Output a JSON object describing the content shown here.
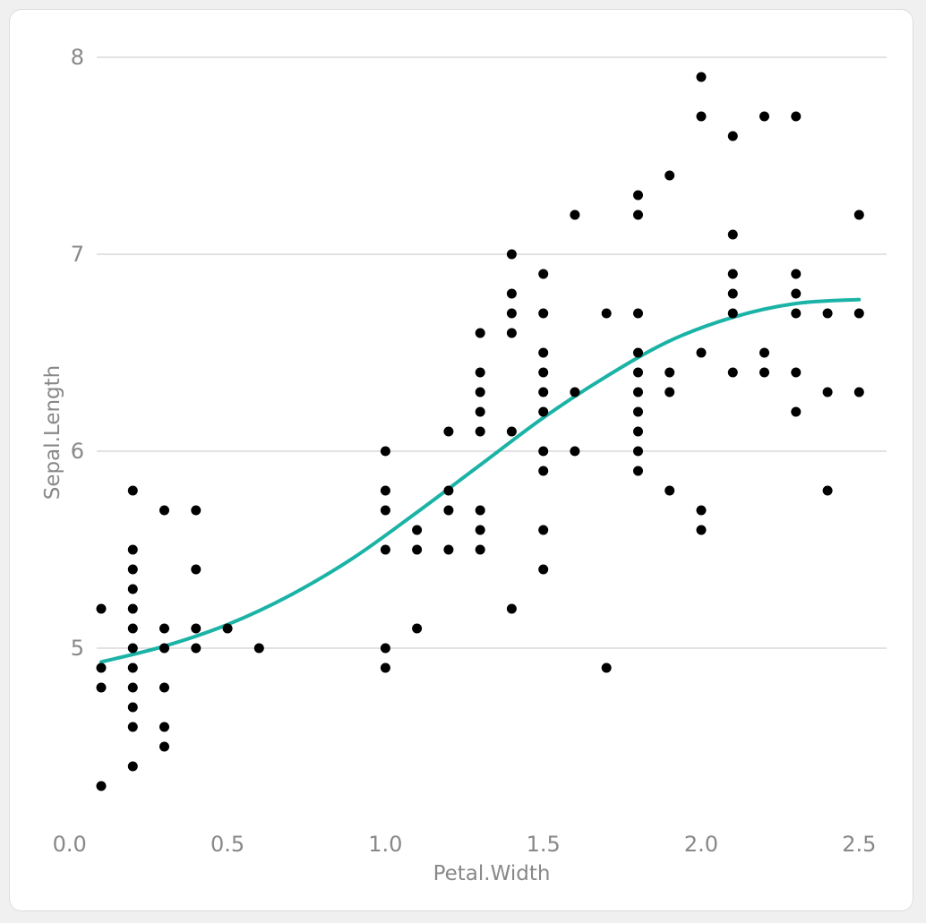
{
  "chart_data": {
    "type": "scatter",
    "xlabel": "Petal.Width",
    "ylabel": "Sepal.Length",
    "xlim": [
      0,
      2.6
    ],
    "ylim": [
      4.1,
      8.0
    ],
    "x_ticks": [
      "0.0",
      "0.5",
      "1.0",
      "1.5",
      "2.0",
      "2.5"
    ],
    "y_ticks": [
      "5",
      "6",
      "7",
      "8"
    ],
    "grid": "horizontal",
    "legend": "none",
    "colors": {
      "points": "#000000",
      "trend_line": "#1ab3a6",
      "gridline": "#d0d0d0"
    },
    "series": [
      {
        "type": "scatter",
        "points": [
          [
            0.1,
            5.2
          ],
          [
            0.1,
            4.9
          ],
          [
            0.1,
            4.8
          ],
          [
            0.1,
            4.3
          ],
          [
            0.2,
            5.8
          ],
          [
            0.2,
            5.5
          ],
          [
            0.2,
            5.4
          ],
          [
            0.2,
            5.3
          ],
          [
            0.2,
            5.2
          ],
          [
            0.2,
            5.1
          ],
          [
            0.2,
            5.0
          ],
          [
            0.2,
            4.9
          ],
          [
            0.2,
            4.8
          ],
          [
            0.2,
            4.7
          ],
          [
            0.2,
            4.6
          ],
          [
            0.2,
            4.4
          ],
          [
            0.3,
            5.7
          ],
          [
            0.3,
            5.1
          ],
          [
            0.3,
            5.0
          ],
          [
            0.3,
            4.8
          ],
          [
            0.3,
            4.6
          ],
          [
            0.3,
            4.5
          ],
          [
            0.4,
            5.7
          ],
          [
            0.4,
            5.4
          ],
          [
            0.4,
            5.1
          ],
          [
            0.4,
            5.0
          ],
          [
            0.5,
            5.1
          ],
          [
            0.6,
            5.0
          ],
          [
            1.0,
            6.0
          ],
          [
            1.0,
            5.8
          ],
          [
            1.0,
            5.7
          ],
          [
            1.0,
            5.5
          ],
          [
            1.0,
            5.0
          ],
          [
            1.0,
            4.9
          ],
          [
            1.1,
            5.6
          ],
          [
            1.1,
            5.5
          ],
          [
            1.1,
            5.1
          ],
          [
            1.2,
            6.1
          ],
          [
            1.2,
            5.8
          ],
          [
            1.2,
            5.7
          ],
          [
            1.2,
            5.5
          ],
          [
            1.3,
            6.6
          ],
          [
            1.3,
            6.4
          ],
          [
            1.3,
            6.3
          ],
          [
            1.3,
            6.2
          ],
          [
            1.3,
            6.1
          ],
          [
            1.3,
            5.7
          ],
          [
            1.3,
            5.6
          ],
          [
            1.3,
            5.5
          ],
          [
            1.4,
            7.0
          ],
          [
            1.4,
            6.8
          ],
          [
            1.4,
            6.7
          ],
          [
            1.4,
            6.6
          ],
          [
            1.4,
            6.1
          ],
          [
            1.4,
            5.2
          ],
          [
            1.5,
            6.9
          ],
          [
            1.5,
            6.7
          ],
          [
            1.5,
            6.5
          ],
          [
            1.5,
            6.4
          ],
          [
            1.5,
            6.3
          ],
          [
            1.5,
            6.2
          ],
          [
            1.5,
            6.0
          ],
          [
            1.5,
            5.9
          ],
          [
            1.5,
            5.6
          ],
          [
            1.5,
            5.4
          ],
          [
            1.6,
            7.2
          ],
          [
            1.6,
            6.3
          ],
          [
            1.6,
            6.0
          ],
          [
            1.7,
            6.7
          ],
          [
            1.7,
            4.9
          ],
          [
            1.8,
            7.3
          ],
          [
            1.8,
            7.2
          ],
          [
            1.8,
            6.7
          ],
          [
            1.8,
            6.5
          ],
          [
            1.8,
            6.4
          ],
          [
            1.8,
            6.3
          ],
          [
            1.8,
            6.2
          ],
          [
            1.8,
            6.1
          ],
          [
            1.8,
            6.0
          ],
          [
            1.8,
            5.9
          ],
          [
            1.9,
            7.4
          ],
          [
            1.9,
            6.4
          ],
          [
            1.9,
            6.3
          ],
          [
            1.9,
            5.8
          ],
          [
            2.0,
            7.9
          ],
          [
            2.0,
            7.7
          ],
          [
            2.0,
            6.5
          ],
          [
            2.0,
            5.7
          ],
          [
            2.0,
            5.6
          ],
          [
            2.1,
            7.6
          ],
          [
            2.1,
            7.1
          ],
          [
            2.1,
            6.9
          ],
          [
            2.1,
            6.8
          ],
          [
            2.1,
            6.7
          ],
          [
            2.1,
            6.4
          ],
          [
            2.2,
            7.7
          ],
          [
            2.2,
            6.5
          ],
          [
            2.2,
            6.4
          ],
          [
            2.3,
            7.7
          ],
          [
            2.3,
            6.9
          ],
          [
            2.3,
            6.8
          ],
          [
            2.3,
            6.7
          ],
          [
            2.3,
            6.4
          ],
          [
            2.3,
            6.2
          ],
          [
            2.4,
            6.7
          ],
          [
            2.4,
            6.3
          ],
          [
            2.4,
            5.8
          ],
          [
            2.5,
            7.2
          ],
          [
            2.5,
            6.7
          ],
          [
            2.5,
            6.3
          ]
        ]
      },
      {
        "type": "line",
        "style": "smooth",
        "points": [
          [
            0.1,
            4.93
          ],
          [
            0.3,
            5.01
          ],
          [
            0.5,
            5.12
          ],
          [
            0.7,
            5.27
          ],
          [
            0.9,
            5.46
          ],
          [
            1.1,
            5.69
          ],
          [
            1.3,
            5.93
          ],
          [
            1.5,
            6.17
          ],
          [
            1.7,
            6.38
          ],
          [
            1.9,
            6.56
          ],
          [
            2.1,
            6.68
          ],
          [
            2.3,
            6.75
          ],
          [
            2.5,
            6.77
          ]
        ]
      }
    ]
  }
}
